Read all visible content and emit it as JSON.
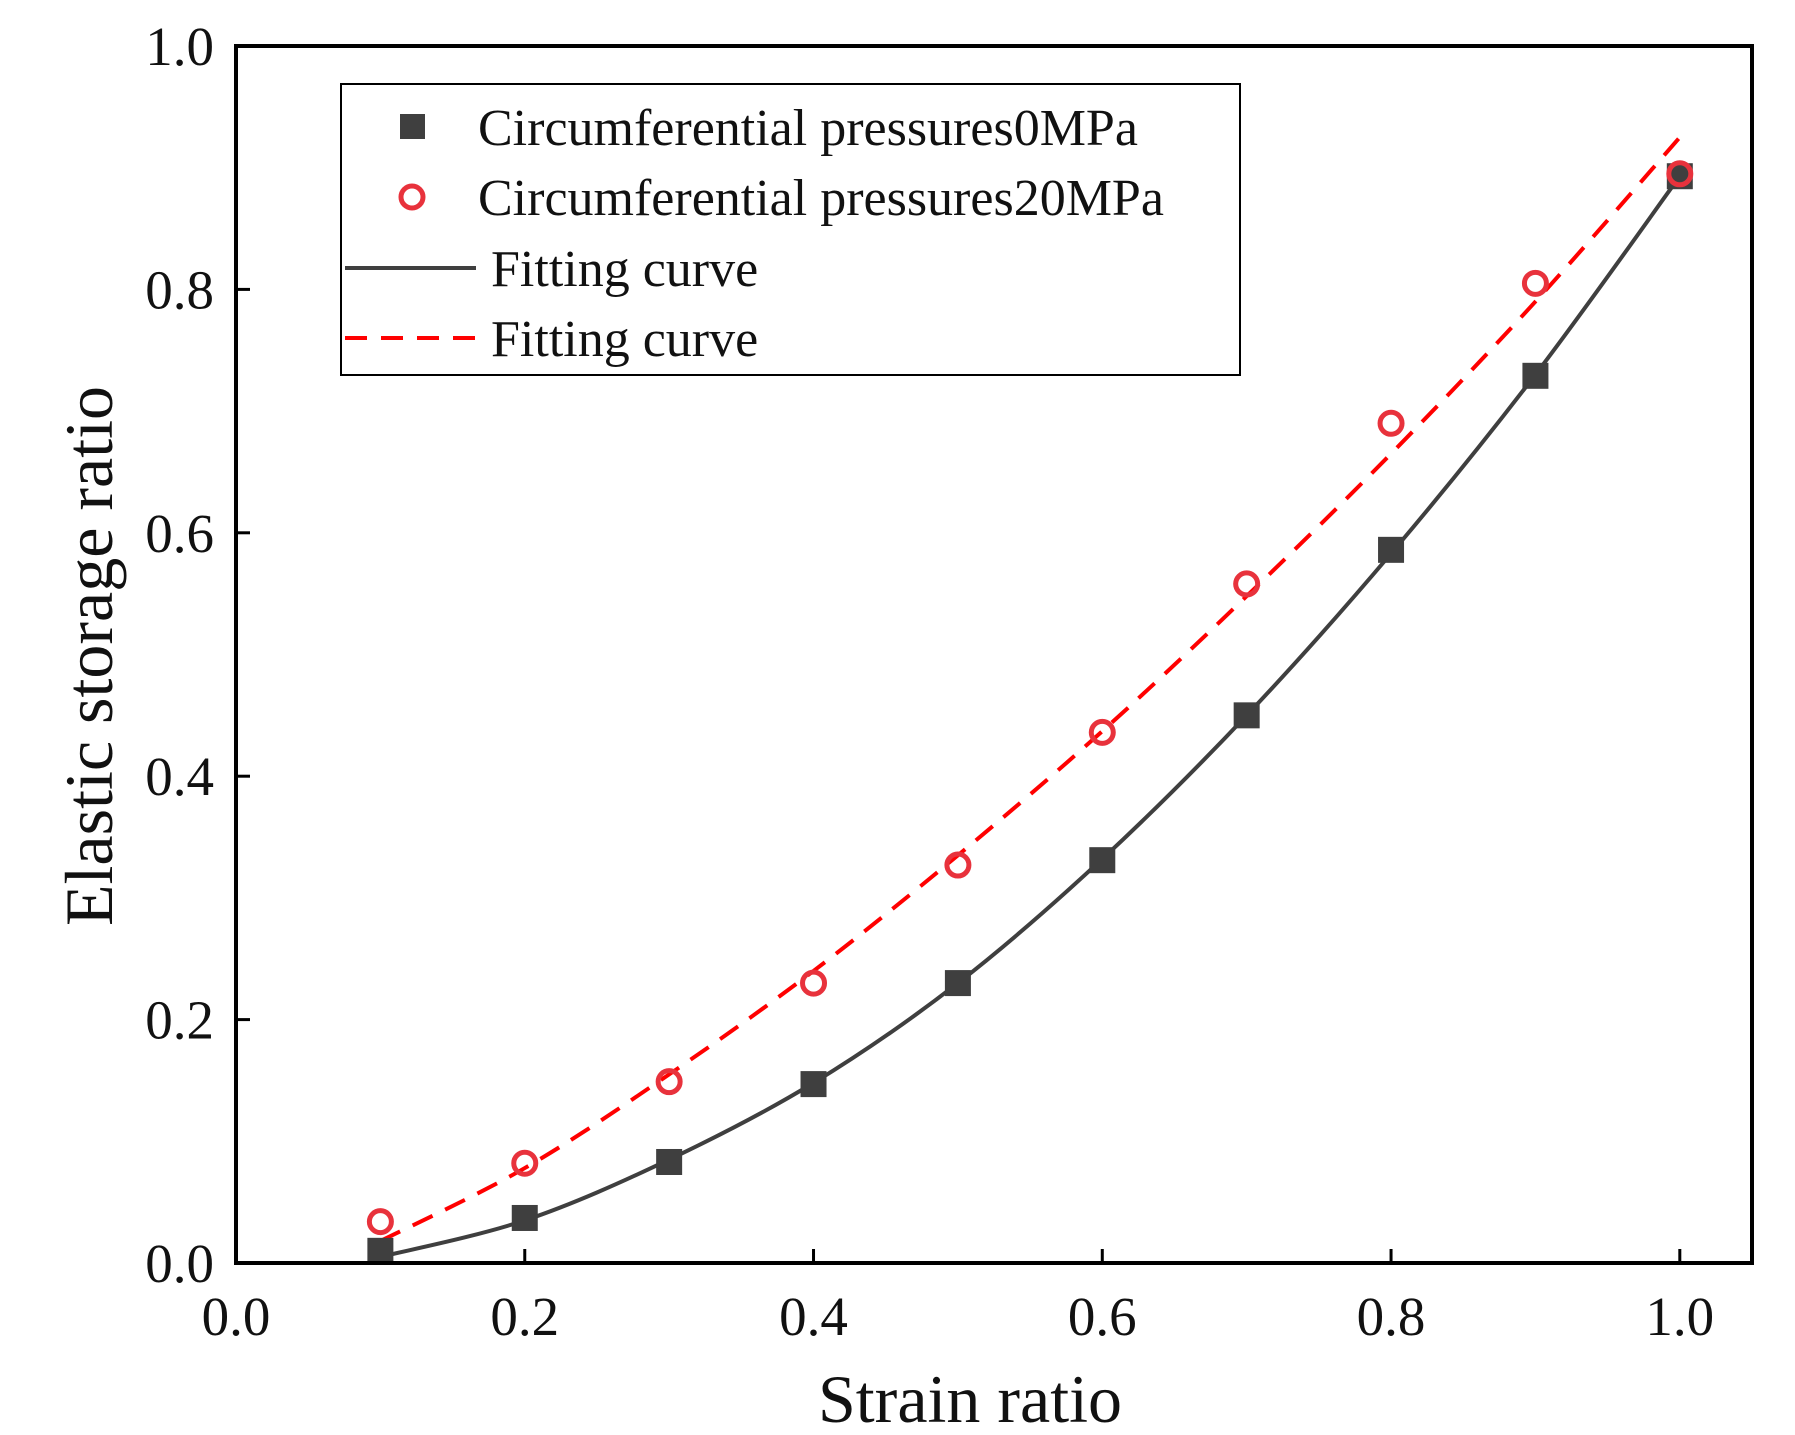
{
  "chart_data": {
    "type": "scatter",
    "title": "",
    "xlabel": "Strain ratio",
    "ylabel": "Elastic storage ratio",
    "xlim": [
      0,
      1.05
    ],
    "ylim": [
      0,
      1.0
    ],
    "xticks": [
      "0.0",
      "0.2",
      "0.4",
      "0.6",
      "0.8",
      "1.0"
    ],
    "yticks": [
      "0.0",
      "0.2",
      "0.4",
      "0.6",
      "0.8",
      "1.0"
    ],
    "grid": false,
    "legend_position": "top-left",
    "x": [
      0.1,
      0.2,
      0.3,
      0.4,
      0.5,
      0.6,
      0.7,
      0.8,
      0.9,
      1.0
    ],
    "series": [
      {
        "name": "Circumferential pressures0MPa",
        "marker": "square",
        "color": "#3f3f3f",
        "values": [
          0.01,
          0.037,
          0.083,
          0.147,
          0.23,
          0.331,
          0.45,
          0.586,
          0.729,
          0.893
        ]
      },
      {
        "name": "Circumferential pressures20MPa",
        "marker": "circle",
        "color": "#e8323c",
        "values": [
          0.034,
          0.082,
          0.149,
          0.23,
          0.327,
          0.436,
          0.558,
          0.69,
          0.805,
          0.895
        ]
      },
      {
        "name": "Fitting curve",
        "line": "solid",
        "color": "#3f3f3f",
        "values": [
          0.005,
          0.035,
          0.085,
          0.148,
          0.23,
          0.332,
          0.45,
          0.583,
          0.73,
          0.893
        ]
      },
      {
        "name": "Fitting curve",
        "line": "dashed",
        "color": "#ff0000",
        "values": [
          0.018,
          0.078,
          0.155,
          0.24,
          0.335,
          0.437,
          0.548,
          0.665,
          0.79,
          0.925
        ]
      }
    ]
  }
}
